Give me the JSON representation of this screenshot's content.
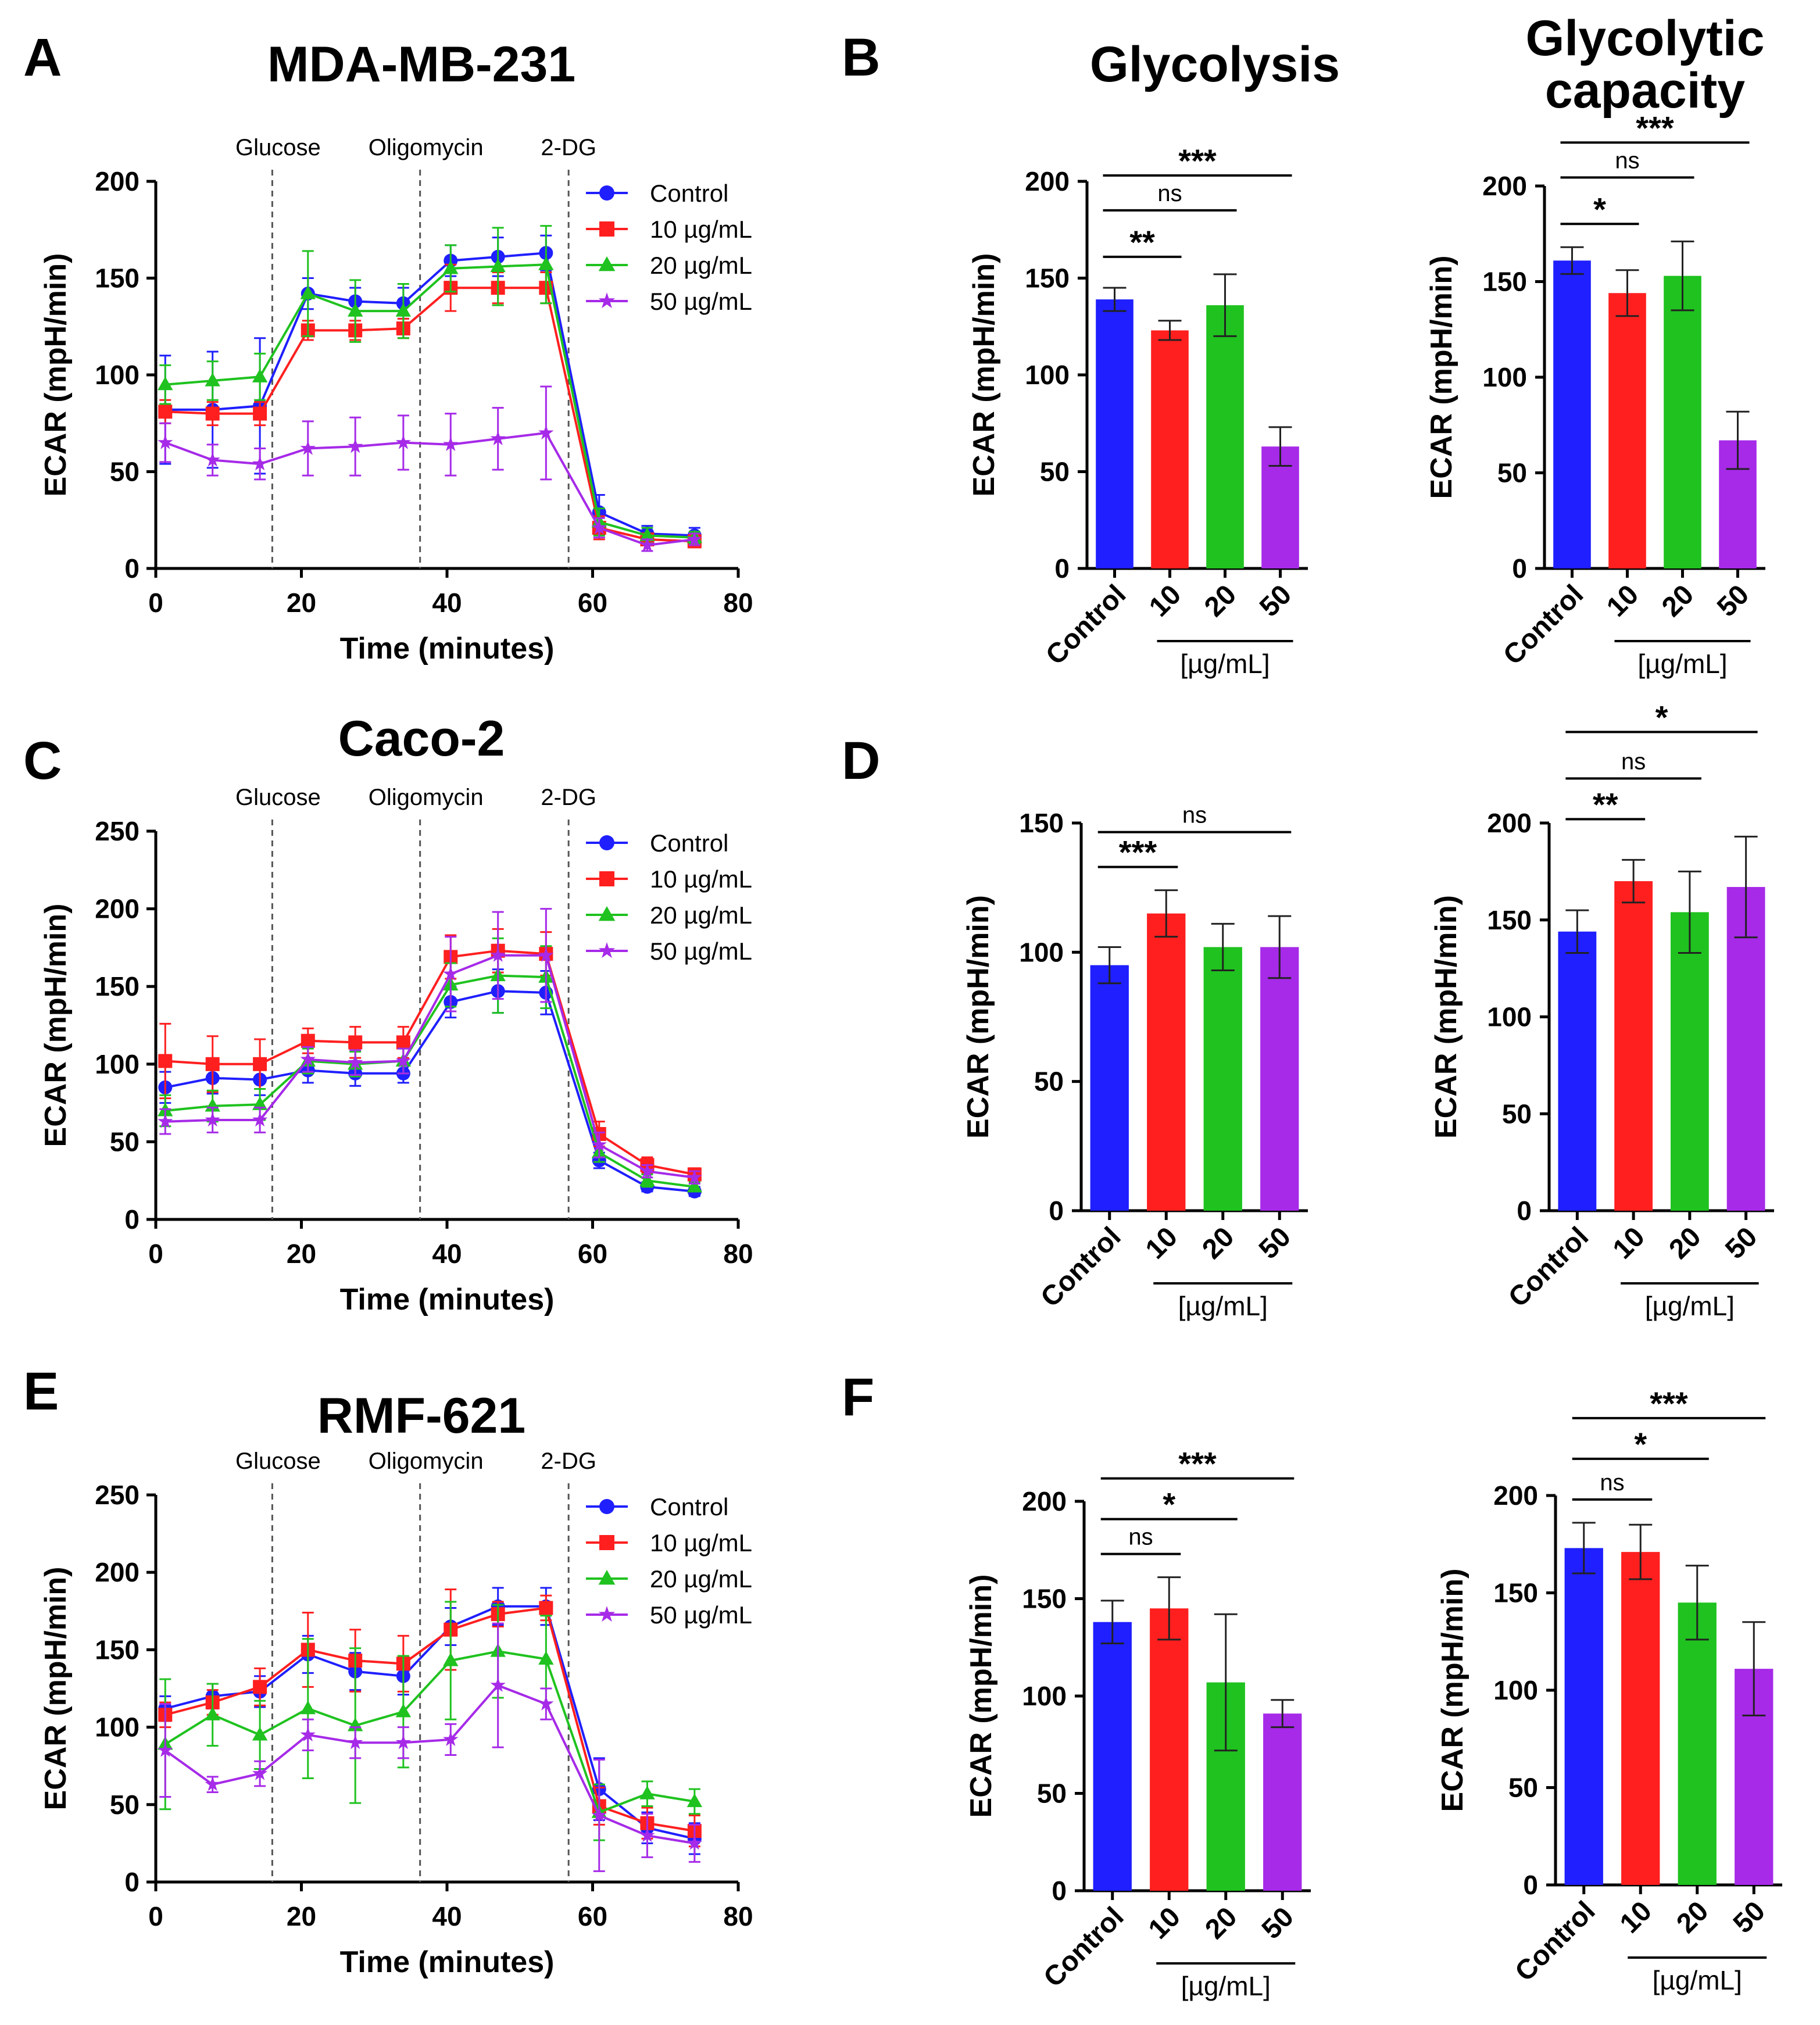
{
  "colors": {
    "control": "#1f1fff",
    "c10": "#ff1f1f",
    "c20": "#1fc21f",
    "c50": "#a62ae8"
  },
  "axis_label_time": "Time (minutes)",
  "axis_label_ecar": "ECAR (mpH/min)",
  "dose_unit": "[µg/mL]",
  "chart_data": [
    {
      "id": "A",
      "panel_letter": "A",
      "type": "line",
      "title": "MDA-MB-231",
      "xlabel": "Time (minutes)",
      "ylabel": "ECAR (mpH/min)",
      "xlim": [
        0,
        80
      ],
      "ylim": [
        0,
        200
      ],
      "xticks": [
        0,
        20,
        40,
        60,
        80
      ],
      "yticks": [
        0,
        50,
        100,
        150,
        200
      ],
      "injections": [
        {
          "label": "Glucose",
          "x": 16
        },
        {
          "label": "Oligomycin",
          "x": 36.3
        },
        {
          "label": "2-DG",
          "x": 56.7
        }
      ],
      "legend": [
        "Control",
        "10 µg/mL",
        "20 µg/mL",
        "50 µg/mL"
      ],
      "x": [
        1.3,
        7.8,
        14.3,
        20.9,
        27.4,
        34.0,
        40.5,
        47.0,
        53.6,
        60.9,
        67.5,
        74.0
      ],
      "series": [
        {
          "name": "Control",
          "values": [
            82,
            82,
            84,
            142,
            138,
            137,
            159,
            161,
            163,
            29,
            18,
            17
          ],
          "err": [
            28,
            30,
            35,
            8,
            7,
            8,
            8,
            10,
            9,
            9,
            4,
            4
          ]
        },
        {
          "name": "10 µg/mL",
          "values": [
            81,
            80,
            80,
            123,
            123,
            124,
            145,
            145,
            145,
            21,
            15,
            14
          ],
          "err": [
            6,
            6,
            6,
            5,
            5,
            5,
            12,
            8,
            8,
            6,
            3,
            3
          ]
        },
        {
          "name": "20 µg/mL",
          "values": [
            95,
            97,
            99,
            142,
            133,
            133,
            155,
            156,
            157,
            24,
            17,
            16
          ],
          "err": [
            10,
            10,
            12,
            22,
            16,
            14,
            12,
            20,
            20,
            7,
            4,
            3
          ]
        },
        {
          "name": "50 µg/mL",
          "values": [
            65,
            56,
            54,
            62,
            63,
            65,
            64,
            67,
            70,
            21,
            12,
            15
          ],
          "err": [
            10,
            8,
            8,
            14,
            15,
            14,
            16,
            16,
            24,
            5,
            3,
            3
          ]
        }
      ]
    },
    {
      "id": "B1",
      "panel_letter": "B",
      "type": "bar",
      "title": "Glycolysis",
      "ylabel": "ECAR (mpH/min)",
      "ylim": [
        0,
        200
      ],
      "yticks": [
        0,
        50,
        100,
        150,
        200
      ],
      "categories": [
        "Control",
        "10",
        "20",
        "50"
      ],
      "values": [
        139,
        123,
        136,
        63
      ],
      "err": [
        6,
        5,
        16,
        10
      ],
      "significance": [
        {
          "from": 0,
          "to": 1,
          "label": "**"
        },
        {
          "from": 0,
          "to": 2,
          "label": "ns"
        },
        {
          "from": 0,
          "to": 3,
          "label": "***"
        }
      ]
    },
    {
      "id": "B2",
      "type": "bar",
      "title": "Glycolytic capacity",
      "ylabel": "ECAR (mpH/min)",
      "ylim": [
        0,
        200
      ],
      "yticks": [
        0,
        50,
        100,
        150,
        200
      ],
      "categories": [
        "Control",
        "10",
        "20",
        "50"
      ],
      "values": [
        161,
        144,
        153,
        67
      ],
      "err": [
        7,
        12,
        18,
        15
      ],
      "significance": [
        {
          "from": 0,
          "to": 1,
          "label": "*"
        },
        {
          "from": 0,
          "to": 2,
          "label": "ns"
        },
        {
          "from": 0,
          "to": 3,
          "label": "***"
        }
      ]
    },
    {
      "id": "C",
      "panel_letter": "C",
      "type": "line",
      "title": "Caco-2",
      "xlabel": "Time (minutes)",
      "ylabel": "ECAR (mpH/min)",
      "xlim": [
        0,
        80
      ],
      "ylim": [
        0,
        250
      ],
      "xticks": [
        0,
        20,
        40,
        60,
        80
      ],
      "yticks": [
        0,
        50,
        100,
        150,
        200,
        250
      ],
      "injections": [
        {
          "label": "Glucose",
          "x": 16
        },
        {
          "label": "Oligomycin",
          "x": 36.3
        },
        {
          "label": "2-DG",
          "x": 56.7
        }
      ],
      "legend": [
        "Control",
        "10 µg/mL",
        "20 µg/mL",
        "50 µg/mL"
      ],
      "x": [
        1.3,
        7.8,
        14.3,
        20.9,
        27.4,
        34.0,
        40.5,
        47.0,
        53.6,
        60.9,
        67.5,
        74.0
      ],
      "series": [
        {
          "name": "Control",
          "values": [
            85,
            91,
            90,
            96,
            94,
            94,
            140,
            147,
            146,
            38,
            21,
            18
          ],
          "err": [
            10,
            10,
            10,
            8,
            8,
            6,
            10,
            14,
            14,
            5,
            3,
            3
          ]
        },
        {
          "name": "10 µg/mL",
          "values": [
            102,
            100,
            100,
            115,
            114,
            114,
            169,
            173,
            171,
            55,
            35,
            29
          ],
          "err": [
            24,
            18,
            16,
            8,
            10,
            10,
            14,
            14,
            14,
            8,
            5,
            4
          ]
        },
        {
          "name": "20 µg/mL",
          "values": [
            70,
            73,
            74,
            102,
            100,
            102,
            151,
            157,
            156,
            43,
            25,
            21
          ],
          "err": [
            10,
            10,
            10,
            8,
            8,
            8,
            14,
            24,
            20,
            6,
            4,
            3
          ]
        },
        {
          "name": "50 µg/mL",
          "values": [
            63,
            64,
            64,
            103,
            101,
            102,
            158,
            170,
            170,
            48,
            31,
            27
          ],
          "err": [
            8,
            8,
            8,
            8,
            8,
            8,
            24,
            28,
            30,
            8,
            4,
            4
          ]
        }
      ]
    },
    {
      "id": "D1",
      "panel_letter": "D",
      "type": "bar",
      "title": "",
      "ylabel": "ECAR (mpH/min)",
      "ylim": [
        0,
        150
      ],
      "yticks": [
        0,
        50,
        100,
        150
      ],
      "categories": [
        "Control",
        "10",
        "20",
        "50"
      ],
      "values": [
        95,
        115,
        102,
        102
      ],
      "err": [
        7,
        9,
        9,
        12
      ],
      "significance": [
        {
          "from": 0,
          "to": 1,
          "label": "***"
        },
        {
          "from": 0,
          "to": 3,
          "label": "ns"
        }
      ]
    },
    {
      "id": "D2",
      "type": "bar",
      "title": "",
      "ylabel": "ECAR (mpH/min)",
      "ylim": [
        0,
        200
      ],
      "yticks": [
        0,
        50,
        100,
        150,
        200
      ],
      "categories": [
        "Control",
        "10",
        "20",
        "50"
      ],
      "values": [
        144,
        170,
        154,
        167
      ],
      "err": [
        11,
        11,
        21,
        26
      ],
      "significance": [
        {
          "from": 0,
          "to": 1,
          "label": "**"
        },
        {
          "from": 0,
          "to": 2,
          "label": "ns"
        },
        {
          "from": 0,
          "to": 3,
          "label": "*"
        }
      ]
    },
    {
      "id": "E",
      "panel_letter": "E",
      "type": "line",
      "title": "RMF-621",
      "xlabel": "Time (minutes)",
      "ylabel": "ECAR (mpH/min)",
      "xlim": [
        0,
        80
      ],
      "ylim": [
        0,
        250
      ],
      "xticks": [
        0,
        20,
        40,
        60,
        80
      ],
      "yticks": [
        0,
        50,
        100,
        150,
        200,
        250
      ],
      "injections": [
        {
          "label": "Glucose",
          "x": 16
        },
        {
          "label": "Oligomycin",
          "x": 36.3
        },
        {
          "label": "2-DG",
          "x": 56.7
        }
      ],
      "legend": [
        "Control",
        "10 µg/mL",
        "20 µg/mL",
        "50 µg/mL"
      ],
      "x": [
        1.3,
        7.8,
        14.3,
        20.9,
        27.4,
        34.0,
        40.5,
        47.0,
        53.6,
        60.9,
        67.5,
        74.0
      ],
      "series": [
        {
          "name": "Control",
          "values": [
            112,
            120,
            123,
            147,
            136,
            133,
            165,
            178,
            178,
            60,
            35,
            28
          ],
          "err": [
            8,
            8,
            10,
            12,
            12,
            12,
            12,
            12,
            12,
            20,
            10,
            10
          ]
        },
        {
          "name": "10 µg/mL",
          "values": [
            108,
            116,
            126,
            150,
            143,
            141,
            163,
            173,
            177,
            49,
            38,
            33
          ],
          "err": [
            8,
            8,
            12,
            24,
            20,
            18,
            26,
            8,
            8,
            12,
            10,
            10
          ]
        },
        {
          "name": "20 µg/mL",
          "values": [
            89,
            108,
            95,
            112,
            101,
            110,
            143,
            149,
            144,
            45,
            57,
            52
          ],
          "err": [
            42,
            20,
            22,
            45,
            50,
            36,
            38,
            30,
            28,
            18,
            8,
            8
          ]
        },
        {
          "name": "50 µg/mL",
          "values": [
            85,
            63,
            70,
            95,
            90,
            90,
            92,
            127,
            115,
            43,
            30,
            25
          ],
          "err": [
            30,
            5,
            8,
            10,
            10,
            10,
            10,
            40,
            10,
            36,
            14,
            12
          ]
        }
      ]
    },
    {
      "id": "F1",
      "panel_letter": "F",
      "type": "bar",
      "title": "",
      "ylabel": "ECAR (mpH/min)",
      "ylim": [
        0,
        200
      ],
      "yticks": [
        0,
        50,
        100,
        150,
        200
      ],
      "categories": [
        "Control",
        "10",
        "20",
        "50"
      ],
      "values": [
        138,
        145,
        107,
        91
      ],
      "err": [
        11,
        16,
        35,
        7
      ],
      "significance": [
        {
          "from": 0,
          "to": 1,
          "label": "ns"
        },
        {
          "from": 0,
          "to": 2,
          "label": "*"
        },
        {
          "from": 0,
          "to": 3,
          "label": "***"
        }
      ]
    },
    {
      "id": "F2",
      "type": "bar",
      "title": "",
      "ylabel": "ECAR (mpH/min)",
      "ylim": [
        0,
        200
      ],
      "yticks": [
        0,
        50,
        100,
        150,
        200
      ],
      "categories": [
        "Control",
        "10",
        "20",
        "50"
      ],
      "values": [
        173,
        171,
        145,
        111
      ],
      "err": [
        13,
        14,
        19,
        24
      ],
      "significance": [
        {
          "from": 0,
          "to": 1,
          "label": "ns"
        },
        {
          "from": 0,
          "to": 2,
          "label": "*"
        },
        {
          "from": 0,
          "to": 3,
          "label": "***"
        }
      ]
    }
  ]
}
